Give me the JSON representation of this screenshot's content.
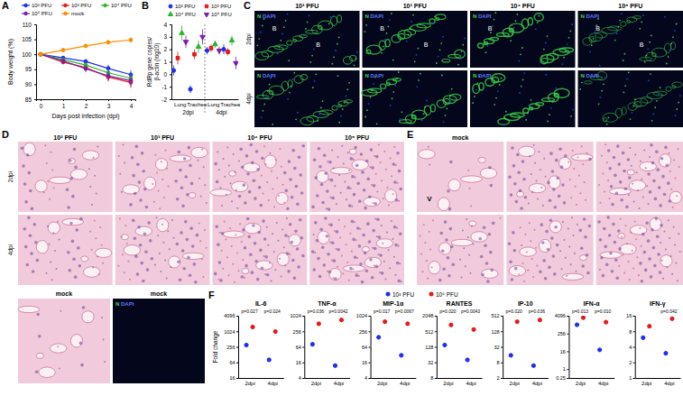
{
  "chart_data": [
    {
      "type": "line",
      "xlabel": "Days post infection (dpi)",
      "ylabel": "Body weight (%)",
      "x": [
        0,
        1,
        2,
        3,
        4
      ],
      "xlim": [
        -0.2,
        4.2
      ],
      "xticks": [
        0,
        1,
        2,
        3,
        4
      ],
      "ylim": [
        85,
        110
      ],
      "yticks": [
        85,
        90,
        95,
        100,
        105,
        110
      ],
      "grid": false,
      "legend": "top",
      "series": [
        {
          "name": "10² PFU",
          "color": "#1c2ff0",
          "marker": "circle",
          "values": [
            100,
            98.8,
            97.6,
            95.3,
            93.2
          ],
          "errors": [
            0,
            0.5,
            0.8,
            1.2,
            1.5
          ]
        },
        {
          "name": "10³ PFU",
          "color": "#e41a1c",
          "marker": "circle",
          "values": [
            100,
            97.4,
            95.6,
            92.4,
            90.6
          ],
          "errors": [
            0,
            0.7,
            1.0,
            1.4,
            1.8
          ]
        },
        {
          "name": "10⁴ PFU",
          "color": "#2db52d",
          "marker": "circle",
          "values": [
            100,
            98.2,
            96.4,
            93.8,
            92.0
          ],
          "errors": [
            0,
            0.6,
            0.9,
            1.3,
            1.6
          ]
        },
        {
          "name": "10⁵ PFU",
          "color": "#7a1fa8",
          "marker": "circle",
          "values": [
            100,
            97.8,
            95.2,
            92.8,
            91.2
          ],
          "errors": [
            0,
            0.8,
            1.2,
            1.6,
            2.0
          ]
        },
        {
          "name": "mock",
          "color": "#ff8c00",
          "marker": "circle",
          "values": [
            100,
            101.4,
            102.8,
            104.0,
            104.8
          ],
          "errors": [
            0,
            0.4,
            0.6,
            0.7,
            0.8
          ]
        }
      ]
    },
    {
      "type": "scatter",
      "ylabel": "RdRp gene copies/ β-actin (log10)",
      "categories": [
        "Lung",
        "Trachea",
        "Lung",
        "Trachea"
      ],
      "groups": [
        "2dpi",
        "4dpi"
      ],
      "ylim": [
        -2,
        4
      ],
      "yticks": [
        -2,
        -1,
        0,
        1,
        2,
        3,
        4
      ],
      "grid": false,
      "legend": "top",
      "series": [
        {
          "name": "10² PFU",
          "color": "#1c2ff0",
          "marker": "circle",
          "values": [
            0.3,
            -1.2,
            1.9,
            2.0
          ],
          "errors": [
            0.4,
            0.3,
            0.3,
            0.4
          ]
        },
        {
          "name": "10³ PFU",
          "color": "#e41a1c",
          "marker": "square",
          "values": [
            1.3,
            1.6,
            2.1,
            1.8
          ],
          "errors": [
            0.5,
            0.4,
            0.3,
            0.3
          ]
        },
        {
          "name": "10⁴ PFU",
          "color": "#2db52d",
          "marker": "triangle",
          "values": [
            3.3,
            2.2,
            2.4,
            2.7
          ],
          "errors": [
            0.6,
            0.5,
            0.3,
            0.4
          ]
        },
        {
          "name": "10⁵ PFU",
          "color": "#7a1fa8",
          "marker": "triangle-down",
          "values": [
            2.6,
            3.0,
            1.9,
            0.9
          ],
          "errors": [
            0.5,
            0.6,
            0.3,
            0.5
          ]
        }
      ]
    },
    {
      "type": "scatter",
      "title": "IL-6",
      "ylabel": "Fold change",
      "categories": [
        "2dpi",
        "4dpi"
      ],
      "log": "y",
      "ylim": [
        16,
        4096
      ],
      "yticks": [
        16,
        64,
        256,
        1024,
        4096
      ],
      "annotations": [
        "p=0.027",
        "p=0.024"
      ],
      "series": [
        {
          "color": "#1c2ff0",
          "marker": "circle",
          "values": [
            300,
            80
          ]
        },
        {
          "color": "#e41a1c",
          "marker": "circle",
          "values": [
            1500,
            1000
          ]
        }
      ]
    },
    {
      "type": "scatter",
      "title": "TNF-α",
      "categories": [
        "2dpi",
        "4dpi"
      ],
      "log": "y",
      "ylim": [
        4,
        1024
      ],
      "yticks": [
        4,
        16,
        64,
        256,
        1024
      ],
      "annotations": [
        "p=0.036",
        "p=0.0042"
      ],
      "series": [
        {
          "color": "#1c2ff0",
          "marker": "circle",
          "values": [
            80,
            12
          ]
        },
        {
          "color": "#e41a1c",
          "marker": "circle",
          "values": [
            500,
            700
          ]
        }
      ]
    },
    {
      "type": "scatter",
      "title": "MIP-1α",
      "categories": [
        "2dpi",
        "4dpi"
      ],
      "log": "y",
      "ylim": [
        4,
        1024
      ],
      "yticks": [
        4,
        16,
        64,
        256,
        1024
      ],
      "annotations": [
        "p=0.017",
        "p=0.0067"
      ],
      "series": [
        {
          "color": "#1c2ff0",
          "marker": "circle",
          "values": [
            150,
            30
          ]
        },
        {
          "color": "#e41a1c",
          "marker": "circle",
          "values": [
            600,
            500
          ]
        }
      ]
    },
    {
      "type": "scatter",
      "title": "RANTES",
      "categories": [
        "2dpi",
        "4dpi"
      ],
      "log": "y",
      "ylim": [
        8,
        2048
      ],
      "yticks": [
        8,
        32,
        128,
        512,
        2048
      ],
      "annotations": [
        "p=0.020",
        "p=0.0043"
      ],
      "series": [
        {
          "color": "#1c2ff0",
          "marker": "circle",
          "values": [
            150,
            40
          ]
        },
        {
          "color": "#e41a1c",
          "marker": "circle",
          "values": [
            900,
            600
          ]
        }
      ]
    },
    {
      "type": "scatter",
      "title": "IP-10",
      "categories": [
        "2dpi",
        "4dpi"
      ],
      "log": "y",
      "ylim": [
        2,
        512
      ],
      "yticks": [
        2,
        8,
        32,
        128,
        512
      ],
      "annotations": [
        "p=0.020",
        "p=0.036"
      ],
      "series": [
        {
          "color": "#1c2ff0",
          "marker": "circle",
          "values": [
            15,
            6
          ]
        },
        {
          "color": "#e41a1c",
          "marker": "circle",
          "values": [
            300,
            350
          ]
        }
      ]
    },
    {
      "type": "scatter",
      "title": "IFN-α",
      "categories": [
        "2dpi",
        "4dpi"
      ],
      "log": "y",
      "ylim": [
        0.25,
        4096
      ],
      "yticks": [
        0.25,
        1,
        16,
        256,
        4096
      ],
      "annotations": [
        "p=0.013",
        "p=0.010"
      ],
      "series": [
        {
          "color": "#1c2ff0",
          "marker": "circle",
          "values": [
            1000,
            20
          ]
        },
        {
          "color": "#e41a1c",
          "marker": "circle",
          "values": [
            3000,
            1500
          ]
        }
      ]
    },
    {
      "type": "scatter",
      "title": "IFN-γ",
      "categories": [
        "2dpi",
        "4dpi"
      ],
      "log": "y",
      "ylim": [
        1,
        16
      ],
      "yticks": [
        1,
        2,
        4,
        8,
        16
      ],
      "annotations": [
        null,
        "p=0.042"
      ],
      "series": [
        {
          "color": "#1c2ff0",
          "marker": "circle",
          "values": [
            6,
            3
          ]
        },
        {
          "color": "#e41a1c",
          "marker": "circle",
          "values": [
            10,
            14
          ]
        }
      ]
    }
  ],
  "shared_legend": [
    {
      "name": "10² PFU",
      "color": "#1c2ff0"
    },
    {
      "name": "10⁵ PFU",
      "color": "#e41a1c"
    }
  ],
  "panel_letters": [
    "A",
    "B",
    "C",
    "D",
    "E",
    "F"
  ],
  "image_panels": {
    "C": {
      "columns": [
        "10² PFU",
        "10³ PFU",
        "10⁴ PFU",
        "10⁵ PFU"
      ],
      "rows": [
        "2dpi",
        "4dpi"
      ],
      "stain": [
        "N",
        "DAPI"
      ],
      "annotations": [
        [
          "B",
          "B"
        ],
        [
          "B",
          "B"
        ],
        [
          "B"
        ],
        [
          "B",
          "B"
        ],
        [],
        [],
        [],
        []
      ]
    },
    "D": {
      "columns": [
        "10² PFU",
        "10³ PFU",
        "10⁴ PFU",
        "10⁵ PFU"
      ],
      "rows": [
        "2dpi",
        "4dpi"
      ],
      "mock": [
        "mock",
        "mock"
      ],
      "stain": [
        "N",
        "DAPI"
      ]
    },
    "E": {
      "columns": [
        "mock"
      ],
      "annotations": [
        "V"
      ]
    }
  }
}
